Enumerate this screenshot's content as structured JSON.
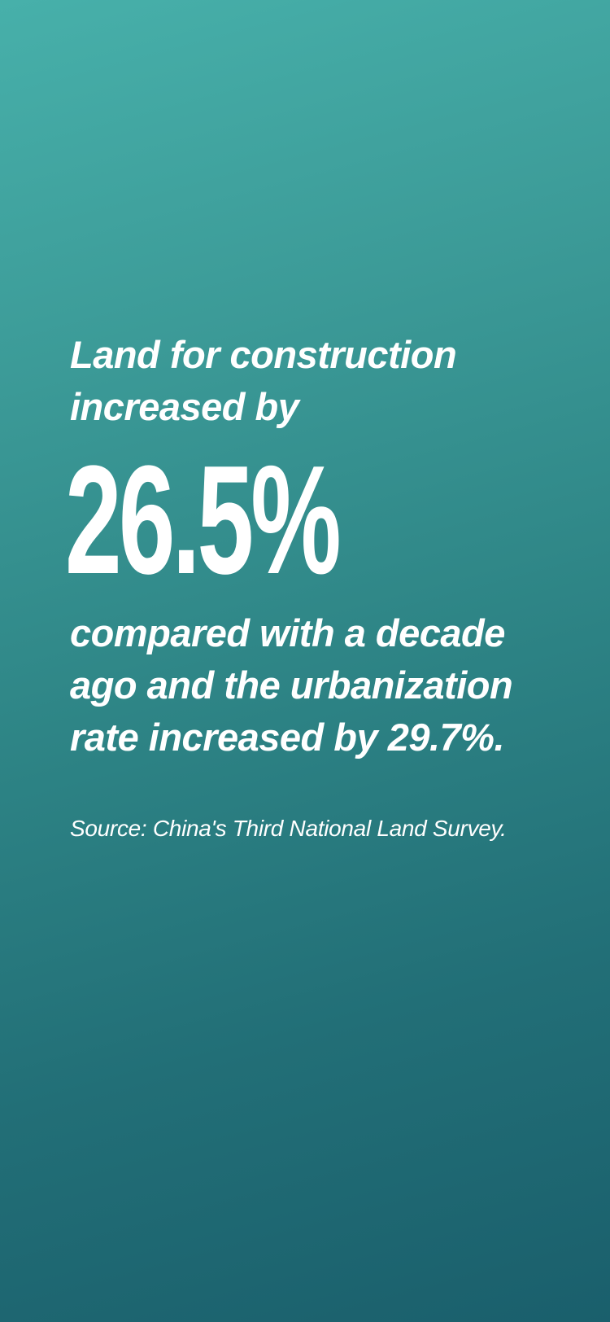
{
  "headline": {
    "lines": [
      "Land for construction",
      "increased by"
    ]
  },
  "stat": {
    "value": "26.5%"
  },
  "description": {
    "lines": [
      "compared with a decade",
      "ago and the urbanization",
      "rate increased by 29.7%."
    ]
  },
  "source": {
    "text": "Source: China's Third National Land Survey."
  },
  "colors": {
    "gradient_top": "#47b0aa",
    "gradient_bottom": "#1a5f6c",
    "text": "#ffffff"
  }
}
